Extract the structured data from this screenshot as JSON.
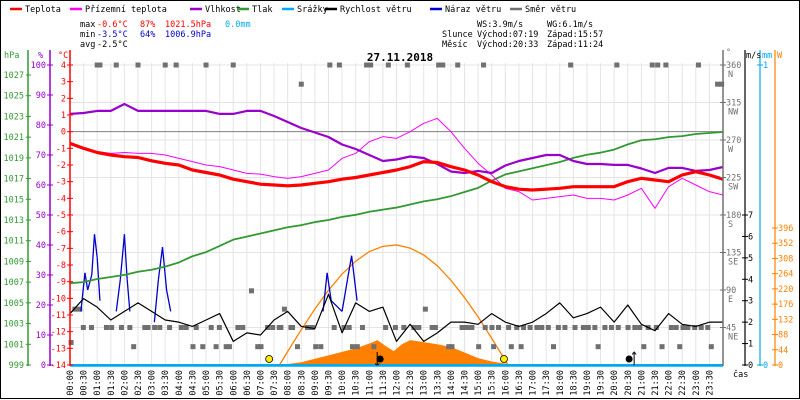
{
  "legend": [
    {
      "label": "Teplota",
      "color": "#ff0000"
    },
    {
      "label": "Přízemní teplota",
      "color": "#ff00ff"
    },
    {
      "label": "Vlhkost",
      "color": "#9900cc"
    },
    {
      "label": "Tlak",
      "color": "#339933"
    },
    {
      "label": "Srážky",
      "color": "#00aaee"
    },
    {
      "label": "Rychlost větru",
      "color": "#000000"
    },
    {
      "label": "Náraz větru",
      "color": "#0000cc"
    },
    {
      "label": "Směr větru",
      "color": "#707070"
    }
  ],
  "stats": {
    "max": {
      "label": "max",
      "temp": "-0.6°C",
      "hum": "87%",
      "press": "1021.5hPa",
      "rain": "0.0mm"
    },
    "min": {
      "label": "min",
      "temp": "-3.5°C",
      "hum": "64%",
      "press": "1006.9hPa"
    },
    "avg": {
      "label": "avg",
      "temp": "-2.5°C"
    },
    "ws": "WS:3.9m/s",
    "wg": "WG:6.1m/s",
    "sun": {
      "label": "Slunce",
      "rise": "Východ:07:19",
      "set": "Západ:15:57"
    },
    "moon": {
      "label": "Měsíc",
      "rise": "Východ:20:33",
      "set": "Západ:11:24"
    }
  },
  "colors": {
    "temp": "#ff0000",
    "apparent": "#ff00ff",
    "humidity": "#9900cc",
    "pressure": "#339933",
    "rain": "#00aaee",
    "wind": "#000000",
    "gust": "#0000cc",
    "direction": "#707070",
    "solar": "#ff8000",
    "grid": "#e4e4e4",
    "zero": "#808080"
  },
  "chart_data": {
    "type": "line",
    "title": "27.11.2018",
    "xlabel": "čas",
    "grid": true,
    "x_ticks": [
      "00:00",
      "00:30",
      "01:00",
      "01:30",
      "02:00",
      "02:30",
      "03:00",
      "03:30",
      "04:00",
      "04:30",
      "05:00",
      "05:30",
      "06:00",
      "06:30",
      "07:00",
      "07:30",
      "08:00",
      "08:30",
      "09:00",
      "09:30",
      "10:00",
      "10:30",
      "11:00",
      "11:30",
      "12:00",
      "12:30",
      "13:00",
      "13:30",
      "14:00",
      "14:30",
      "15:00",
      "15:30",
      "16:00",
      "16:30",
      "17:00",
      "17:30",
      "18:00",
      "18:30",
      "19:00",
      "19:30",
      "20:00",
      "20:30",
      "21:00",
      "21:30",
      "22:00",
      "22:30",
      "23:00",
      "23:30"
    ],
    "axes": {
      "pressure": {
        "unit": "hPa",
        "range": [
          999,
          1027
        ],
        "ticks": [
          999,
          1001,
          1003,
          1005,
          1007,
          1009,
          1011,
          1013,
          1015,
          1017,
          1019,
          1021,
          1023,
          1025,
          1027
        ]
      },
      "humidity": {
        "unit": "%",
        "range": [
          0,
          100
        ],
        "ticks": [
          0,
          10,
          20,
          30,
          40,
          50,
          60,
          70,
          80,
          90,
          100
        ]
      },
      "temperature": {
        "unit": "°C",
        "range": [
          -14,
          4
        ],
        "ticks": [
          4,
          3,
          2,
          1,
          0,
          -1,
          -2,
          -3,
          -4,
          -5,
          -6,
          -7,
          -8,
          -9,
          -10,
          -11,
          -12,
          -13,
          -14
        ]
      },
      "direction": {
        "unit": "°",
        "range": [
          0,
          360
        ],
        "ticks": [
          {
            "v": 360,
            "c": "N"
          },
          {
            "v": 315,
            "c": "NW"
          },
          {
            "v": 270,
            "c": "W"
          },
          {
            "v": 225,
            "c": "SW"
          },
          {
            "v": 180,
            "c": "S"
          },
          {
            "v": 135,
            "c": "SE"
          },
          {
            "v": 90,
            "c": "E"
          },
          {
            "v": 45,
            "c": "NE"
          }
        ]
      },
      "wind": {
        "unit": "m/s",
        "range": [
          0,
          7
        ],
        "ticks": [
          0,
          1,
          2,
          3,
          4,
          5,
          6,
          7
        ]
      },
      "rain": {
        "unit": "mm",
        "range": [
          0,
          1
        ],
        "ticks": [
          0,
          1
        ]
      },
      "solar": {
        "unit": "W",
        "range": [
          0,
          396
        ],
        "ticks": [
          0,
          44,
          88,
          132,
          176,
          220,
          264,
          308,
          352,
          396
        ]
      }
    },
    "time_h": [
      0,
      0.5,
      1,
      1.5,
      2,
      2.5,
      3,
      3.5,
      4,
      4.5,
      5,
      5.5,
      6,
      6.5,
      7,
      7.5,
      8,
      8.5,
      9,
      9.5,
      10,
      10.5,
      11,
      11.5,
      12,
      12.5,
      13,
      13.5,
      14,
      14.5,
      15,
      15.5,
      16,
      16.5,
      17,
      17.5,
      18,
      18.5,
      19,
      19.5,
      20,
      20.5,
      21,
      21.5,
      22,
      22.5,
      23,
      23.5,
      24
    ],
    "series": [
      {
        "name": "Teplota",
        "axis": "temperature",
        "values": [
          -0.7,
          -1.0,
          -1.25,
          -1.4,
          -1.5,
          -1.55,
          -1.75,
          -1.9,
          -2.0,
          -2.3,
          -2.45,
          -2.6,
          -2.85,
          -3.0,
          -3.15,
          -3.2,
          -3.25,
          -3.2,
          -3.1,
          -3.0,
          -2.85,
          -2.75,
          -2.6,
          -2.45,
          -2.3,
          -2.1,
          -1.8,
          -1.85,
          -2.1,
          -2.3,
          -2.6,
          -3.0,
          -3.3,
          -3.45,
          -3.5,
          -3.45,
          -3.4,
          -3.3,
          -3.3,
          -3.3,
          -3.3,
          -3.0,
          -2.8,
          -2.9,
          -3.0,
          -2.6,
          -2.4,
          -2.6,
          -2.85
        ]
      },
      {
        "name": "Přízemní teplota",
        "axis": "temperature",
        "values": [
          -0.7,
          -1.0,
          -1.2,
          -1.3,
          -1.25,
          -1.3,
          -1.3,
          -1.4,
          -1.6,
          -1.8,
          -2.0,
          -2.1,
          -2.3,
          -2.5,
          -2.55,
          -2.7,
          -2.8,
          -2.7,
          -2.5,
          -2.3,
          -1.6,
          -1.3,
          -0.6,
          -0.3,
          -0.4,
          0.0,
          0.5,
          0.8,
          0.0,
          -1.0,
          -1.9,
          -2.6,
          -3.4,
          -3.6,
          -4.1,
          -4.0,
          -3.9,
          -3.8,
          -4.0,
          -4.0,
          -4.1,
          -3.8,
          -3.4,
          -4.6,
          -3.3,
          -2.8,
          -3.2,
          -3.6,
          -3.8
        ]
      },
      {
        "name": "Vlhkost",
        "axis": "humidity",
        "values": [
          83.7,
          84,
          84.7,
          84.7,
          87,
          84.7,
          84.7,
          84.7,
          84.7,
          84.7,
          84.7,
          83.7,
          83.7,
          84.7,
          84.7,
          83,
          81,
          79,
          77.5,
          76,
          73.5,
          72,
          70,
          68,
          68.5,
          69.5,
          69,
          67,
          64.5,
          64,
          64.7,
          64,
          66.5,
          68,
          69,
          70,
          70,
          68,
          67,
          67,
          66.7,
          66.7,
          65.5,
          64,
          65.7,
          65.7,
          64.7,
          65,
          66
        ]
      },
      {
        "name": "Tlak",
        "axis": "pressure",
        "values": [
          1006.9,
          1007.0,
          1007.3,
          1007.5,
          1007.7,
          1008.0,
          1008.2,
          1008.5,
          1008.9,
          1009.5,
          1009.9,
          1010.5,
          1011.1,
          1011.4,
          1011.7,
          1012.0,
          1012.3,
          1012.5,
          1012.8,
          1013.0,
          1013.3,
          1013.5,
          1013.8,
          1014.0,
          1014.2,
          1014.5,
          1014.8,
          1015.0,
          1015.3,
          1015.7,
          1016.1,
          1016.8,
          1017.4,
          1017.7,
          1018.0,
          1018.3,
          1018.6,
          1019.0,
          1019.3,
          1019.5,
          1019.8,
          1020.3,
          1020.7,
          1020.8,
          1021.0,
          1021.1,
          1021.3,
          1021.4,
          1021.5
        ]
      },
      {
        "name": "Rychlost větru",
        "axis": "wind",
        "values": [
          2.4,
          3.1,
          2.7,
          2.1,
          2.5,
          2.9,
          2.5,
          2.1,
          2.0,
          1.8,
          2.1,
          2.4,
          1.1,
          1.5,
          1.4,
          2.1,
          2.5,
          1.8,
          1.7,
          3.3,
          1.5,
          2.9,
          2.5,
          2.7,
          1.1,
          1.9,
          1.1,
          1.5,
          2.0,
          2.0,
          1.9,
          2.4,
          2.0,
          1.8,
          2.0,
          2.4,
          2.9,
          2.2,
          2.4,
          2.7,
          2.0,
          2.8,
          1.9,
          1.6,
          2.4,
          1.9,
          1.8,
          2.0,
          2.0
        ]
      },
      {
        "name": "Srážky",
        "axis": "rain",
        "values": [
          0,
          0,
          0,
          0,
          0,
          0,
          0,
          0,
          0,
          0,
          0,
          0,
          0,
          0,
          0,
          0,
          0,
          0,
          0,
          0,
          0,
          0,
          0,
          0,
          0,
          0,
          0,
          0,
          0,
          0,
          0,
          0,
          0,
          0,
          0,
          0,
          0,
          0,
          0,
          0,
          0,
          0,
          0,
          0,
          0,
          0,
          0,
          0,
          0
        ]
      }
    ],
    "gust_points": [
      [
        0.4,
        2.5
      ],
      [
        0.55,
        4.3
      ],
      [
        0.65,
        3.5
      ],
      [
        0.8,
        4.2
      ],
      [
        0.9,
        6.1
      ],
      [
        1.0,
        5.0
      ],
      [
        1.1,
        3.0
      ],
      [
        1.7,
        2.5
      ],
      [
        1.85,
        4.0
      ],
      [
        2.0,
        6.1
      ],
      [
        2.1,
        4.0
      ],
      [
        2.2,
        2.5
      ],
      [
        3.1,
        2.0
      ],
      [
        3.25,
        4.0
      ],
      [
        3.4,
        5.5
      ],
      [
        3.55,
        3.5
      ],
      [
        3.7,
        2.5
      ],
      [
        9.3,
        2.5
      ],
      [
        9.45,
        4.3
      ],
      [
        9.6,
        3.0
      ],
      [
        10.0,
        2.5
      ],
      [
        10.2,
        4.0
      ],
      [
        10.35,
        5.1
      ],
      [
        10.55,
        3.0
      ]
    ],
    "direction_points": [
      [
        0.04,
        27
      ],
      [
        0.18,
        67
      ],
      [
        0.36,
        67
      ],
      [
        0.49,
        45
      ],
      [
        0.79,
        45
      ],
      [
        1.0,
        360
      ],
      [
        1.1,
        360
      ],
      [
        1.34,
        45
      ],
      [
        1.53,
        45
      ],
      [
        1.7,
        360
      ],
      [
        1.89,
        45
      ],
      [
        2.2,
        45
      ],
      [
        2.34,
        22
      ],
      [
        2.5,
        360
      ],
      [
        2.75,
        45
      ],
      [
        2.87,
        45
      ],
      [
        3.11,
        45
      ],
      [
        3.3,
        45
      ],
      [
        3.5,
        360
      ],
      [
        3.66,
        45
      ],
      [
        3.9,
        360
      ],
      [
        4.09,
        45
      ],
      [
        4.27,
        45
      ],
      [
        4.52,
        22
      ],
      [
        4.64,
        45
      ],
      [
        4.88,
        22
      ],
      [
        5.0,
        360
      ],
      [
        5.19,
        45
      ],
      [
        5.37,
        22
      ],
      [
        5.49,
        45
      ],
      [
        5.74,
        22
      ],
      [
        5.86,
        22
      ],
      [
        6.0,
        360
      ],
      [
        6.17,
        45
      ],
      [
        6.35,
        45
      ],
      [
        6.67,
        89
      ],
      [
        6.9,
        22
      ],
      [
        7.02,
        22
      ],
      [
        7.26,
        45
      ],
      [
        7.45,
        45
      ],
      [
        7.69,
        45
      ],
      [
        7.75,
        45
      ],
      [
        7.88,
        67
      ],
      [
        8.12,
        45
      ],
      [
        8.18,
        45
      ],
      [
        8.36,
        22
      ],
      [
        8.5,
        337
      ],
      [
        8.73,
        45
      ],
      [
        8.91,
        45
      ],
      [
        9.03,
        22
      ],
      [
        9.22,
        22
      ],
      [
        9.55,
        360
      ],
      [
        9.71,
        45
      ],
      [
        9.9,
        360
      ],
      [
        10.07,
        45
      ],
      [
        10.26,
        45
      ],
      [
        10.38,
        22
      ],
      [
        10.56,
        22
      ],
      [
        10.75,
        45
      ],
      [
        10.9,
        360
      ],
      [
        11.05,
        360
      ],
      [
        11.17,
        22
      ],
      [
        11.6,
        45
      ],
      [
        11.7,
        360
      ],
      [
        11.96,
        45
      ],
      [
        12.27,
        45
      ],
      [
        12.4,
        360
      ],
      [
        12.64,
        45
      ],
      [
        12.82,
        45
      ],
      [
        13.06,
        67
      ],
      [
        13.31,
        45
      ],
      [
        13.43,
        45
      ],
      [
        13.55,
        360
      ],
      [
        13.7,
        360
      ],
      [
        13.92,
        22
      ],
      [
        14.04,
        22
      ],
      [
        14.25,
        360
      ],
      [
        14.41,
        45
      ],
      [
        14.59,
        45
      ],
      [
        14.77,
        45
      ],
      [
        15.02,
        22
      ],
      [
        15.2,
        360
      ],
      [
        15.26,
        45
      ],
      [
        15.51,
        45
      ],
      [
        15.57,
        22
      ],
      [
        15.75,
        45
      ],
      [
        16.12,
        45
      ],
      [
        16.22,
        22
      ],
      [
        16.42,
        45
      ],
      [
        16.58,
        22
      ],
      [
        16.67,
        45
      ],
      [
        16.91,
        45
      ],
      [
        17.16,
        45
      ],
      [
        17.34,
        45
      ],
      [
        17.58,
        45
      ],
      [
        17.77,
        22
      ],
      [
        17.95,
        45
      ],
      [
        18.19,
        45
      ],
      [
        18.4,
        360
      ],
      [
        18.56,
        45
      ],
      [
        18.87,
        45
      ],
      [
        19.05,
        45
      ],
      [
        19.29,
        45
      ],
      [
        19.41,
        22
      ],
      [
        19.66,
        45
      ],
      [
        19.9,
        45
      ],
      [
        20.1,
        360
      ],
      [
        20.15,
        45
      ],
      [
        20.51,
        45
      ],
      [
        20.76,
        45
      ],
      [
        20.94,
        45
      ],
      [
        21.09,
        22
      ],
      [
        21.25,
        45
      ],
      [
        21.4,
        360
      ],
      [
        21.55,
        45
      ],
      [
        21.6,
        360
      ],
      [
        21.76,
        22
      ],
      [
        21.9,
        360
      ],
      [
        22.1,
        45
      ],
      [
        22.28,
        45
      ],
      [
        22.41,
        22
      ],
      [
        22.53,
        45
      ],
      [
        22.71,
        45
      ],
      [
        22.96,
        45
      ],
      [
        23.1,
        360
      ],
      [
        23.2,
        45
      ],
      [
        23.44,
        45
      ],
      [
        23.57,
        22
      ],
      [
        23.8,
        337
      ],
      [
        23.95,
        337
      ]
    ],
    "solar_theoretical": [
      [
        7.7,
        0
      ],
      [
        8,
        39
      ],
      [
        8.5,
        102
      ],
      [
        9,
        162
      ],
      [
        9.5,
        216
      ],
      [
        10,
        263
      ],
      [
        10.5,
        300
      ],
      [
        11,
        328
      ],
      [
        11.5,
        343
      ],
      [
        12,
        347
      ],
      [
        12.5,
        338
      ],
      [
        13,
        318
      ],
      [
        13.5,
        287
      ],
      [
        14,
        245
      ],
      [
        14.5,
        195
      ],
      [
        15,
        139
      ],
      [
        15.5,
        77
      ],
      [
        16,
        13
      ],
      [
        16.1,
        0
      ]
    ],
    "solar_measured": [
      [
        7.7,
        0
      ],
      [
        8,
        3
      ],
      [
        8.5,
        8
      ],
      [
        9,
        18
      ],
      [
        9.5,
        28
      ],
      [
        10,
        38
      ],
      [
        10.5,
        48
      ],
      [
        11,
        62
      ],
      [
        11.3,
        72
      ],
      [
        11.6,
        55
      ],
      [
        11.9,
        40
      ],
      [
        12.2,
        60
      ],
      [
        12.5,
        72
      ],
      [
        13,
        66
      ],
      [
        13.5,
        60
      ],
      [
        14,
        52
      ],
      [
        14.5,
        36
      ],
      [
        15,
        20
      ],
      [
        15.5,
        10
      ],
      [
        16,
        4
      ],
      [
        16.3,
        0
      ]
    ],
    "events": [
      {
        "type": "sunrise",
        "time_h": 7.32
      },
      {
        "type": "sunset",
        "time_h": 15.95
      },
      {
        "type": "moonset",
        "time_h": 11.4
      },
      {
        "type": "moonrise",
        "time_h": 20.55
      }
    ]
  }
}
